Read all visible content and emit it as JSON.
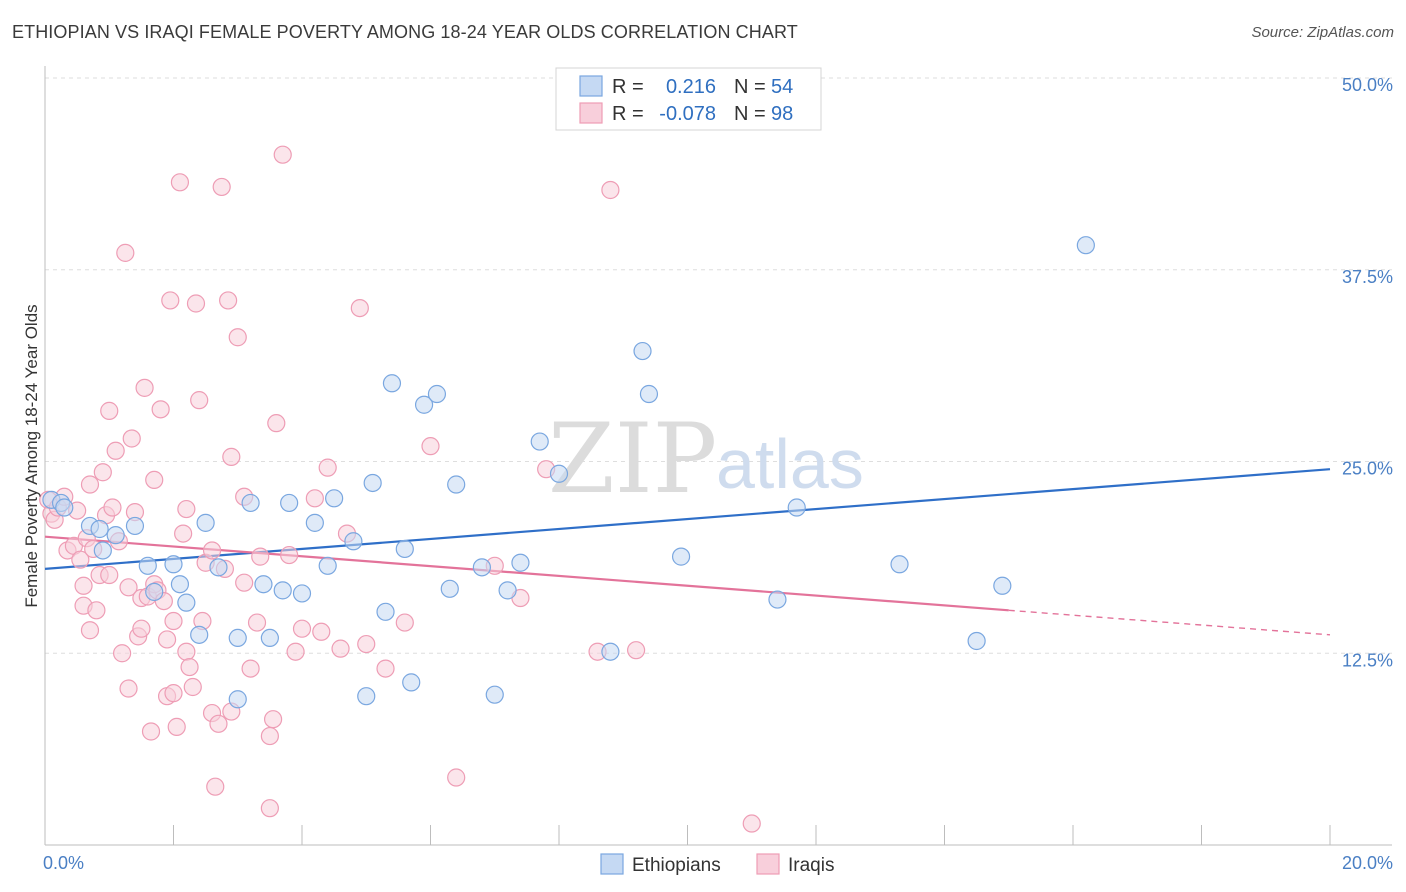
{
  "title": "ETHIOPIAN VS IRAQI FEMALE POVERTY AMONG 18-24 YEAR OLDS CORRELATION CHART",
  "source": "Source: ZipAtlas.com",
  "watermark": {
    "zip": "ZIP",
    "atlas": "atlas"
  },
  "colors": {
    "ethiopians": "#7aa7e0",
    "ethiopians_fill": "#c5d9f3",
    "ethiopians_line": "#2f6fc8",
    "iraqis": "#ee9db5",
    "iraqis_fill": "#f8cfdb",
    "iraqis_line": "#e3739a",
    "axis_label": "#4a7fc4",
    "grid": "#dedede"
  },
  "legend": {
    "rows": [
      {
        "r_label": "R =",
        "r_value": "0.216",
        "n_label": "N =",
        "n_value": "54"
      },
      {
        "r_label": "R =",
        "r_value": "-0.078",
        "n_label": "N =",
        "n_value": "98"
      }
    ]
  },
  "bottom_legend": [
    "Ethiopians",
    "Iraqis"
  ],
  "chart_data": {
    "type": "scatter",
    "title": "ETHIOPIAN VS IRAQI FEMALE POVERTY AMONG 18-24 YEAR OLDS CORRELATION CHART",
    "xlabel": "",
    "ylabel": "Female Poverty Among 18-24 Year Olds",
    "xlim": [
      0,
      20
    ],
    "ylim": [
      0,
      50
    ],
    "x_tick_labels": [
      "0.0%",
      "20.0%"
    ],
    "y_tick_labels": [
      "12.5%",
      "25.0%",
      "37.5%",
      "50.0%"
    ],
    "y_ticks": [
      12.5,
      25.0,
      37.5,
      50.0
    ],
    "grid": true,
    "legend_position": "top-center",
    "series": [
      {
        "name": "Ethiopians",
        "r": 0.216,
        "n": 54,
        "trend": {
          "x": [
            0,
            20
          ],
          "y": [
            18.0,
            24.5
          ],
          "dashed_from": null
        },
        "points": [
          [
            0.1,
            22.5
          ],
          [
            0.25,
            22.3
          ],
          [
            0.3,
            22.0
          ],
          [
            0.7,
            20.8
          ],
          [
            0.85,
            20.6
          ],
          [
            1.1,
            20.2
          ],
          [
            1.4,
            20.8
          ],
          [
            0.9,
            19.2
          ],
          [
            1.6,
            18.2
          ],
          [
            2.0,
            18.3
          ],
          [
            2.1,
            17.0
          ],
          [
            1.7,
            16.5
          ],
          [
            2.2,
            15.8
          ],
          [
            2.4,
            13.7
          ],
          [
            2.5,
            21.0
          ],
          [
            2.7,
            18.1
          ],
          [
            3.0,
            13.5
          ],
          [
            3.2,
            22.3
          ],
          [
            3.4,
            17.0
          ],
          [
            3.5,
            13.5
          ],
          [
            3.7,
            16.6
          ],
          [
            3.8,
            22.3
          ],
          [
            4.0,
            16.4
          ],
          [
            4.2,
            21.0
          ],
          [
            4.4,
            18.2
          ],
          [
            4.5,
            22.6
          ],
          [
            4.8,
            19.8
          ],
          [
            5.1,
            23.6
          ],
          [
            5.3,
            15.2
          ],
          [
            5.4,
            30.1
          ],
          [
            5.6,
            19.3
          ],
          [
            5.7,
            10.6
          ],
          [
            5.9,
            28.7
          ],
          [
            6.1,
            29.4
          ],
          [
            6.3,
            16.7
          ],
          [
            6.4,
            23.5
          ],
          [
            6.8,
            18.1
          ],
          [
            7.0,
            9.8
          ],
          [
            7.2,
            16.6
          ],
          [
            7.4,
            18.4
          ],
          [
            7.7,
            26.3
          ],
          [
            8.0,
            24.2
          ],
          [
            8.8,
            12.6
          ],
          [
            9.3,
            32.2
          ],
          [
            9.4,
            29.4
          ],
          [
            9.9,
            18.8
          ],
          [
            11.4,
            16.0
          ],
          [
            11.7,
            22.0
          ],
          [
            13.3,
            18.3
          ],
          [
            5.0,
            9.7
          ],
          [
            3.0,
            9.5
          ],
          [
            14.9,
            16.9
          ],
          [
            14.5,
            13.3
          ],
          [
            16.2,
            39.1
          ]
        ]
      },
      {
        "name": "Iraqis",
        "r": -0.078,
        "n": 98,
        "trend": {
          "x": [
            0,
            20
          ],
          "y": [
            20.1,
            13.7
          ],
          "dashed_from": 15.0
        },
        "points": [
          [
            0.05,
            22.5
          ],
          [
            0.1,
            21.6
          ],
          [
            0.15,
            21.2
          ],
          [
            0.2,
            22.0
          ],
          [
            0.3,
            22.7
          ],
          [
            0.35,
            19.2
          ],
          [
            0.45,
            19.5
          ],
          [
            0.5,
            21.8
          ],
          [
            0.55,
            18.6
          ],
          [
            0.6,
            16.9
          ],
          [
            0.6,
            15.6
          ],
          [
            0.65,
            20.0
          ],
          [
            0.7,
            23.5
          ],
          [
            0.75,
            19.3
          ],
          [
            0.7,
            14.0
          ],
          [
            0.8,
            15.3
          ],
          [
            0.85,
            17.6
          ],
          [
            0.9,
            24.3
          ],
          [
            0.95,
            21.5
          ],
          [
            1.0,
            17.6
          ],
          [
            1.0,
            28.3
          ],
          [
            1.05,
            22.0
          ],
          [
            1.1,
            25.7
          ],
          [
            1.15,
            19.8
          ],
          [
            1.2,
            12.5
          ],
          [
            1.25,
            38.6
          ],
          [
            1.3,
            16.8
          ],
          [
            1.3,
            10.2
          ],
          [
            1.35,
            26.5
          ],
          [
            1.4,
            21.7
          ],
          [
            1.45,
            13.6
          ],
          [
            1.5,
            16.1
          ],
          [
            1.5,
            14.1
          ],
          [
            1.55,
            29.8
          ],
          [
            1.6,
            16.2
          ],
          [
            1.65,
            7.4
          ],
          [
            1.7,
            23.8
          ],
          [
            1.7,
            17.0
          ],
          [
            1.75,
            16.6
          ],
          [
            1.8,
            28.4
          ],
          [
            1.85,
            15.9
          ],
          [
            1.9,
            13.4
          ],
          [
            1.9,
            9.7
          ],
          [
            1.95,
            35.5
          ],
          [
            2.0,
            9.9
          ],
          [
            2.0,
            14.6
          ],
          [
            2.05,
            7.7
          ],
          [
            2.1,
            43.2
          ],
          [
            2.15,
            20.3
          ],
          [
            2.2,
            21.9
          ],
          [
            2.2,
            12.6
          ],
          [
            2.25,
            11.6
          ],
          [
            2.3,
            10.3
          ],
          [
            2.35,
            35.3
          ],
          [
            2.4,
            29.0
          ],
          [
            2.45,
            14.6
          ],
          [
            2.5,
            18.4
          ],
          [
            2.6,
            8.6
          ],
          [
            2.6,
            19.2
          ],
          [
            2.65,
            3.8
          ],
          [
            2.7,
            7.9
          ],
          [
            2.75,
            42.9
          ],
          [
            2.8,
            18.0
          ],
          [
            2.85,
            35.5
          ],
          [
            2.9,
            25.3
          ],
          [
            2.9,
            8.7
          ],
          [
            3.0,
            33.1
          ],
          [
            3.1,
            17.1
          ],
          [
            3.1,
            22.7
          ],
          [
            3.2,
            11.5
          ],
          [
            3.3,
            14.5
          ],
          [
            3.35,
            18.8
          ],
          [
            3.5,
            2.4
          ],
          [
            3.5,
            7.1
          ],
          [
            3.55,
            8.2
          ],
          [
            3.6,
            27.5
          ],
          [
            3.7,
            45.0
          ],
          [
            3.8,
            18.9
          ],
          [
            3.9,
            12.6
          ],
          [
            4.0,
            14.1
          ],
          [
            4.2,
            22.6
          ],
          [
            4.3,
            13.9
          ],
          [
            4.4,
            24.6
          ],
          [
            4.6,
            12.8
          ],
          [
            4.7,
            20.3
          ],
          [
            4.9,
            35.0
          ],
          [
            5.0,
            13.1
          ],
          [
            5.3,
            11.5
          ],
          [
            5.6,
            14.5
          ],
          [
            6.0,
            26.0
          ],
          [
            6.4,
            4.4
          ],
          [
            7.0,
            18.2
          ],
          [
            7.4,
            16.1
          ],
          [
            7.8,
            24.5
          ],
          [
            8.6,
            12.6
          ],
          [
            8.8,
            42.7
          ],
          [
            9.2,
            12.7
          ],
          [
            11.0,
            1.4
          ]
        ]
      }
    ]
  }
}
